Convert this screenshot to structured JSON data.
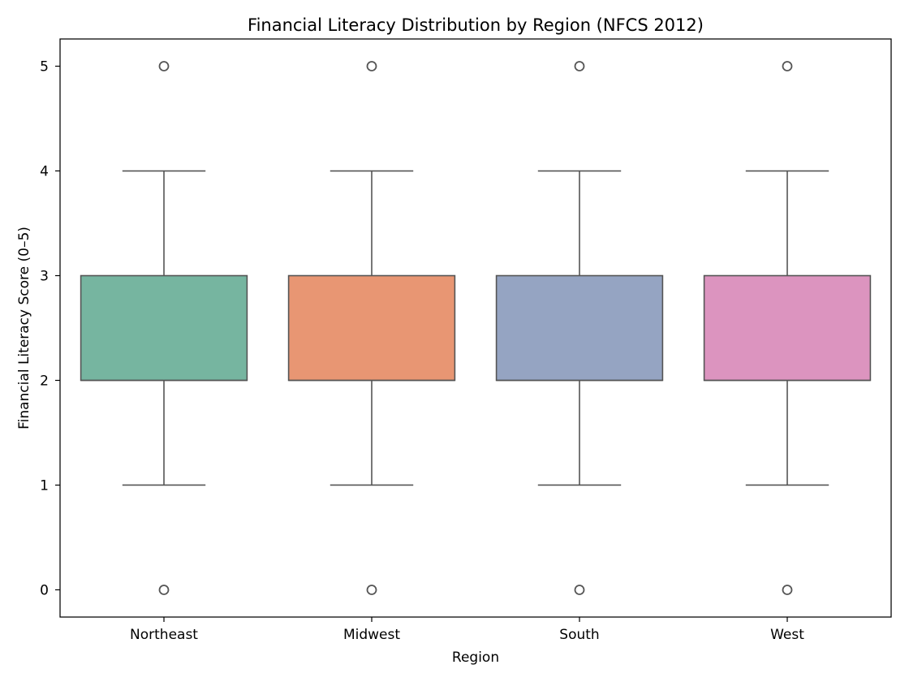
{
  "chart_data": {
    "type": "box",
    "title": "Financial Literacy Distribution by Region (NFCS 2012)",
    "xlabel": "Region",
    "ylabel": "Financial Literacy Score (0–5)",
    "ylim": [
      -0.26,
      5.26
    ],
    "yticks": [
      0,
      1,
      2,
      3,
      4,
      5
    ],
    "grid": false,
    "categories": [
      "Northeast",
      "Midwest",
      "South",
      "West"
    ],
    "colors": [
      "#76b5a0",
      "#e89673",
      "#95a4c2",
      "#dc94bf"
    ],
    "line_color": "#555555",
    "boxes": [
      {
        "category": "Northeast",
        "whisker_low": 1,
        "q1": 2,
        "median": 2,
        "q3": 3,
        "whisker_high": 4,
        "outliers": [
          0,
          5
        ]
      },
      {
        "category": "Midwest",
        "whisker_low": 1,
        "q1": 2,
        "median": 2,
        "q3": 3,
        "whisker_high": 4,
        "outliers": [
          0,
          5
        ]
      },
      {
        "category": "South",
        "whisker_low": 1,
        "q1": 2,
        "median": 2,
        "q3": 3,
        "whisker_high": 4,
        "outliers": [
          0,
          5
        ]
      },
      {
        "category": "West",
        "whisker_low": 1,
        "q1": 2,
        "median": 2,
        "q3": 3,
        "whisker_high": 4,
        "outliers": [
          0,
          5
        ]
      }
    ]
  }
}
